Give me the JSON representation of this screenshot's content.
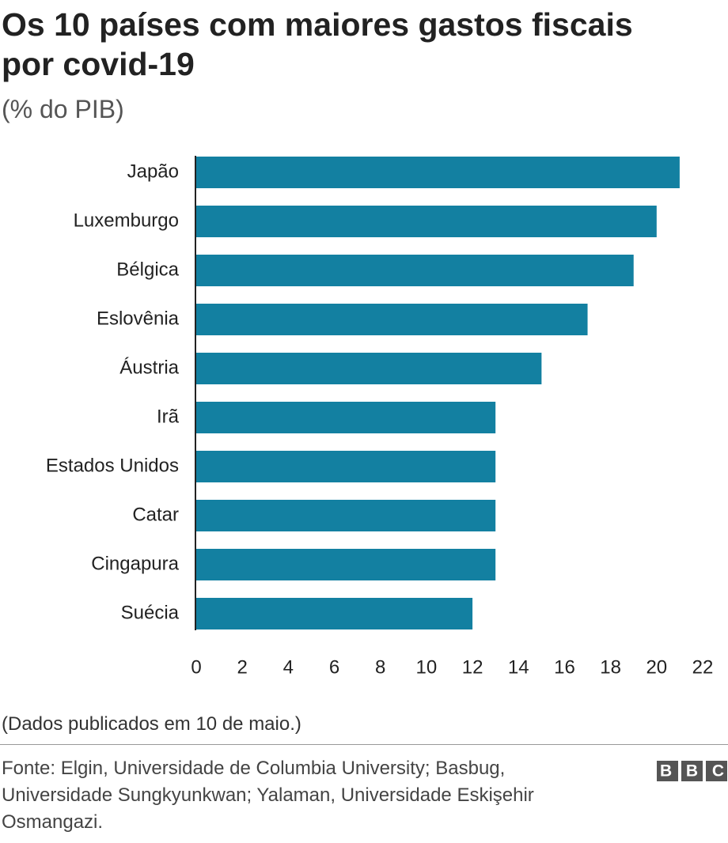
{
  "chart_data": {
    "type": "bar",
    "orientation": "horizontal",
    "title": "Os 10 países com maiores gastos fiscais por covid-19",
    "subtitle": "(% do PIB)",
    "categories": [
      "Japão",
      "Luxemburgo",
      "Bélgica",
      "Eslovênia",
      "Áustria",
      "Irã",
      "Estados Unidos",
      "Catar",
      "Cingapura",
      "Suécia"
    ],
    "values": [
      21,
      20,
      19,
      17,
      15,
      13,
      13,
      13,
      13,
      12
    ],
    "color": "#1380a1",
    "xlim": [
      0,
      22
    ],
    "xticks": [
      0,
      2,
      4,
      6,
      8,
      10,
      12,
      14,
      16,
      18,
      20,
      22
    ],
    "grid": false,
    "note": "(Dados publicados em 10 de maio.)",
    "source": "Fonte: Elgin, Universidade de Columbia University; Basbug, Universidade Sungkyunkwan; Yalaman, Universidade Eskişehir Osmangazi.",
    "logo": "BBC"
  }
}
